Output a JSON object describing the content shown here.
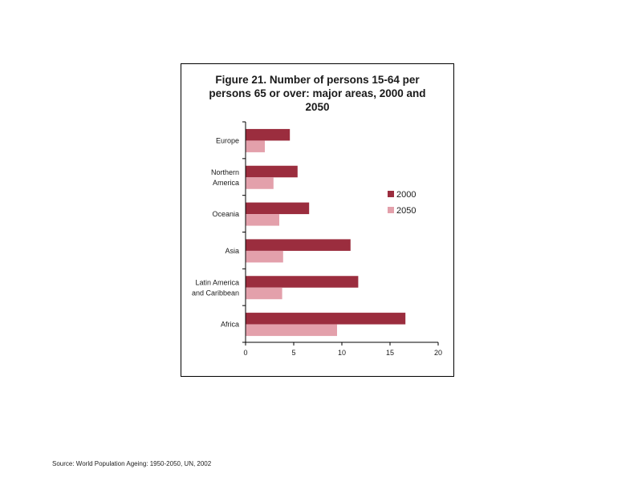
{
  "chart_data": {
    "type": "bar",
    "orientation": "horizontal",
    "title": "Figure 21.  Number of persons 15-64 per\npersons 65 or over: major areas, 2000 and\n2050",
    "categories": [
      "Europe",
      "Northern\nAmerica",
      "Oceania",
      "Asia",
      "Latin America\nand Caribbean",
      "Africa"
    ],
    "series": [
      {
        "name": "2000",
        "color": "#9b2d3e",
        "values": [
          4.6,
          5.4,
          6.6,
          10.9,
          11.7,
          16.6
        ]
      },
      {
        "name": "2050",
        "color": "#e3a0ab",
        "values": [
          2.0,
          2.9,
          3.5,
          3.9,
          3.8,
          9.5
        ]
      }
    ],
    "xlim": [
      0,
      20
    ],
    "xticks": [
      0,
      5,
      10,
      15,
      20
    ],
    "xlabel": "",
    "ylabel": "",
    "grid": false,
    "legend_position": "right"
  },
  "footer": {
    "source": "Source: World Population Ageing: 1950-2050, UN, 2002"
  }
}
